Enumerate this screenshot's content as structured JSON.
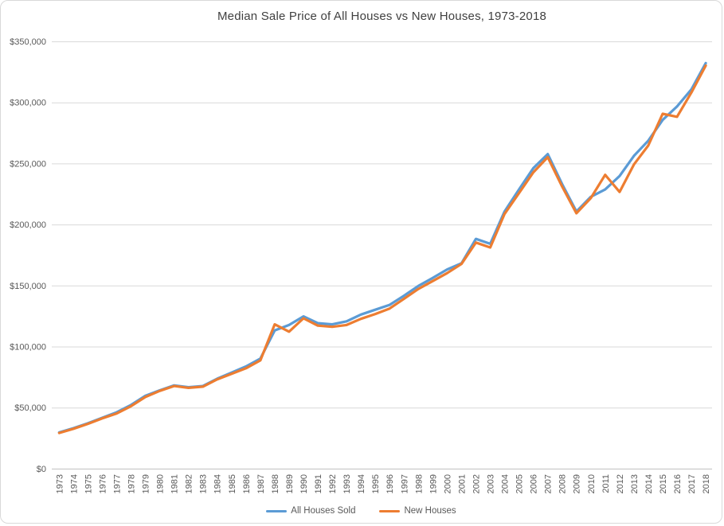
{
  "chart_data": {
    "type": "line",
    "title": "Median Sale Price of All Houses vs New Houses, 1973-2018",
    "categories": [
      "1973",
      "1974",
      "1975",
      "1976",
      "1977",
      "1978",
      "1979",
      "1980",
      "1981",
      "1982",
      "1983",
      "1984",
      "1985",
      "1986",
      "1987",
      "1988",
      "1989",
      "1990",
      "1991",
      "1992",
      "1993",
      "1994",
      "1995",
      "1996",
      "1997",
      "1998",
      "1999",
      "2000",
      "2001",
      "2002",
      "2003",
      "2004",
      "2005",
      "2006",
      "2007",
      "2008",
      "2009",
      "2010",
      "2011",
      "2012",
      "2013",
      "2014",
      "2015",
      "2016",
      "2017",
      "2018"
    ],
    "series": [
      {
        "name": "All Houses Sold",
        "color": "#5B9BD5",
        "values": [
          30000,
          33500,
          37500,
          42000,
          46500,
          52500,
          60000,
          64500,
          68500,
          67000,
          68000,
          74000,
          79000,
          84000,
          90500,
          113500,
          118000,
          125000,
          119500,
          118500,
          121000,
          126500,
          130500,
          134500,
          142000,
          150000,
          156500,
          163500,
          168500,
          188500,
          184500,
          211000,
          229000,
          246500,
          258000,
          233500,
          211000,
          223000,
          229000,
          240000,
          256500,
          269000,
          286000,
          297000,
          311000,
          332500
        ]
      },
      {
        "name": "New Houses",
        "color": "#ED7D31",
        "values": [
          29500,
          33000,
          37000,
          41500,
          45500,
          51500,
          59000,
          64000,
          68000,
          66500,
          67500,
          73500,
          78000,
          82500,
          89000,
          118500,
          112500,
          123500,
          117500,
          116500,
          118000,
          123000,
          127000,
          131500,
          139500,
          147500,
          154000,
          160500,
          168000,
          185500,
          181500,
          209000,
          226000,
          243000,
          255500,
          231500,
          209500,
          222000,
          241000,
          227000,
          249500,
          265000,
          291000,
          288500,
          308500,
          330500
        ]
      }
    ],
    "xlabel": "",
    "ylabel": "",
    "ylim": [
      0,
      350000
    ],
    "y_ticks": [
      {
        "value": 350000,
        "label": "$350,000"
      },
      {
        "value": 300000,
        "label": "$300,000"
      },
      {
        "value": 250000,
        "label": "$250,000"
      },
      {
        "value": 200000,
        "label": "$200,000"
      },
      {
        "value": 150000,
        "label": "$150,000"
      },
      {
        "value": 100000,
        "label": "$100,000"
      },
      {
        "value": 50000,
        "label": "$50,000"
      },
      {
        "value": 0,
        "label": "$0"
      }
    ],
    "grid": "horizontal",
    "legend_position": "bottom",
    "gridline_color": "#D9D9D9",
    "axis_line_color": "#BFBFBF",
    "tick_label_color": "#595959",
    "title_color": "#404040"
  }
}
